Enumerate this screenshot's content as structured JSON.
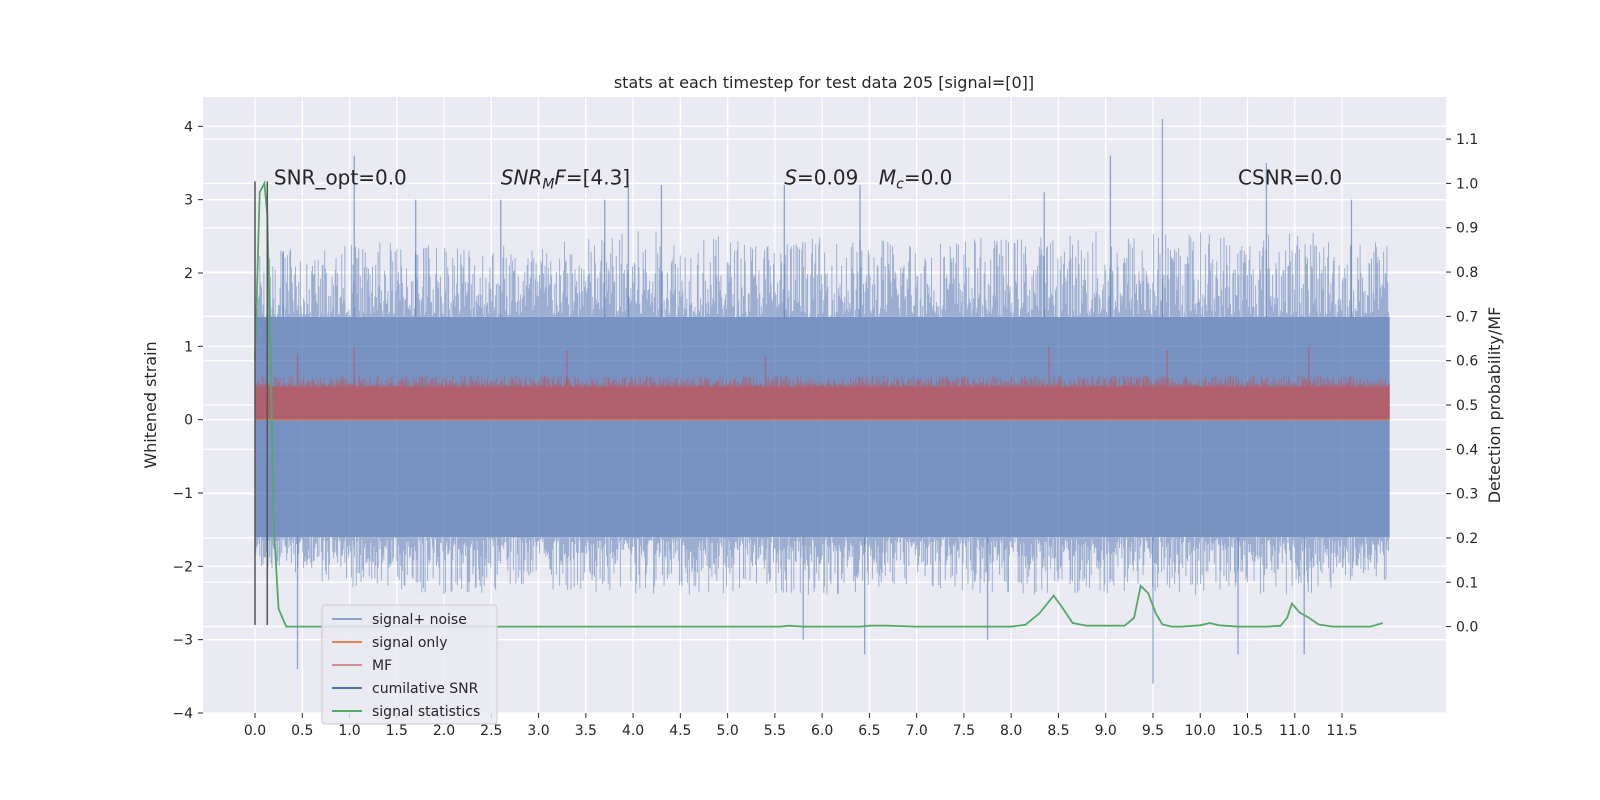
{
  "chart_data": {
    "type": "line",
    "title": "stats at each timestep for test data 205 [signal=[0]]",
    "xlabel": "",
    "ylabel": "Whitened strain",
    "ylabel_right": "Detection probability/MF",
    "xlim": [
      -0.55,
      12.6
    ],
    "ylim": [
      -4.0,
      4.4
    ],
    "ylim_right": [
      -0.195,
      1.195
    ],
    "x_ticks": [
      0.0,
      0.5,
      1.0,
      1.5,
      2.0,
      2.5,
      3.0,
      3.5,
      4.0,
      4.5,
      5.0,
      5.5,
      6.0,
      6.5,
      7.0,
      7.5,
      8.0,
      8.5,
      9.0,
      9.5,
      10.0,
      10.5,
      11.0,
      11.5
    ],
    "x_tick_labels": [
      "0.0",
      "0.5",
      "1.0",
      "1.5",
      "2.0",
      "2.5",
      "3.0",
      "3.5",
      "4.0",
      "4.5",
      "5.0",
      "5.5",
      "6.0",
      "6.5",
      "7.0",
      "7.5",
      "8.0",
      "8.5",
      "9.0",
      "9.5",
      "10.0",
      "10.5",
      "11.0",
      "11.5"
    ],
    "y_ticks": [
      -4,
      -3,
      -2,
      -1,
      0,
      1,
      2,
      3,
      4
    ],
    "y_tick_labels": [
      "−4",
      "−3",
      "−2",
      "−1",
      "0",
      "1",
      "2",
      "3",
      "4"
    ],
    "y_ticks_right": [
      0.0,
      0.1,
      0.2,
      0.3,
      0.4,
      0.5,
      0.6,
      0.7,
      0.8,
      0.9,
      1.0,
      1.1
    ],
    "y_tick_labels_right": [
      "0.0",
      "0.1",
      "0.2",
      "0.3",
      "0.4",
      "0.5",
      "0.6",
      "0.7",
      "0.8",
      "0.9",
      "1.0",
      "1.1"
    ],
    "grid": true,
    "legend_position": "lower-left",
    "annotations": [
      {
        "text": "SNR_opt=0.0",
        "x": 0.2,
        "y": 3.3
      },
      {
        "text": "SNR",
        "sub": "M",
        "tail": "F=[4.3]",
        "italic": true,
        "x": 2.6,
        "y": 3.3
      },
      {
        "text": "S",
        "tail": "=0.09",
        "italic": true,
        "x": 5.6,
        "y": 3.3
      },
      {
        "text": "M",
        "sub": "c",
        "tail": "=0.0",
        "italic": true,
        "x": 6.6,
        "y": 3.3
      },
      {
        "text": "CSNR=0.0",
        "x": 10.4,
        "y": 3.3
      }
    ],
    "series": [
      {
        "name": "signal+ noise",
        "color": "#4c72b0",
        "axis": "left",
        "kind": "noise-band",
        "x_range": [
          0.0,
          12.0
        ],
        "dense_band": [
          -1.6,
          1.4
        ],
        "envelope_upper": [
          [
            0.0,
            2.3
          ],
          [
            1.0,
            2.4
          ],
          [
            2.0,
            2.5
          ],
          [
            3.0,
            2.4
          ],
          [
            4.0,
            2.6
          ],
          [
            5.0,
            2.5
          ],
          [
            6.0,
            2.5
          ],
          [
            7.0,
            2.5
          ],
          [
            8.0,
            2.5
          ],
          [
            9.0,
            2.6
          ],
          [
            10.0,
            2.6
          ],
          [
            11.0,
            2.6
          ],
          [
            12.0,
            2.4
          ]
        ],
        "envelope_lower": [
          [
            0.0,
            -2.0
          ],
          [
            1.0,
            -2.3
          ],
          [
            2.0,
            -2.4
          ],
          [
            3.0,
            -2.3
          ],
          [
            4.0,
            -2.4
          ],
          [
            5.0,
            -2.4
          ],
          [
            6.0,
            -2.4
          ],
          [
            7.0,
            -2.3
          ],
          [
            8.0,
            -2.4
          ],
          [
            9.0,
            -2.4
          ],
          [
            10.0,
            -2.4
          ],
          [
            11.0,
            -2.4
          ],
          [
            12.0,
            -2.2
          ]
        ],
        "spikes": [
          [
            0.3,
            2.3
          ],
          [
            0.45,
            -3.4
          ],
          [
            1.05,
            3.6
          ],
          [
            1.7,
            3.0
          ],
          [
            2.6,
            3.0
          ],
          [
            3.7,
            3.0
          ],
          [
            3.95,
            3.2
          ],
          [
            4.3,
            3.2
          ],
          [
            5.6,
            3.2
          ],
          [
            5.8,
            -3.0
          ],
          [
            6.4,
            3.2
          ],
          [
            6.45,
            -3.2
          ],
          [
            7.75,
            -3.0
          ],
          [
            8.35,
            3.1
          ],
          [
            9.05,
            3.6
          ],
          [
            9.6,
            4.1
          ],
          [
            9.5,
            -3.6
          ],
          [
            10.4,
            -3.2
          ],
          [
            10.7,
            3.5
          ],
          [
            11.1,
            -3.2
          ],
          [
            11.6,
            3.0
          ]
        ]
      },
      {
        "name": "signal only",
        "color": "#dd8452",
        "axis": "left",
        "kind": "line",
        "x": [
          0.0,
          12.0
        ],
        "y": [
          0.0,
          0.0
        ]
      },
      {
        "name": "MF",
        "color": "#c44e52",
        "axis": "left",
        "kind": "noise-band",
        "x_range": [
          0.0,
          12.0
        ],
        "dense_band": [
          0.0,
          0.45
        ],
        "envelope_upper": [
          [
            0.0,
            0.6
          ],
          [
            3.0,
            0.6
          ],
          [
            6.0,
            0.6
          ],
          [
            9.0,
            0.6
          ],
          [
            12.0,
            0.6
          ]
        ],
        "envelope_lower": [
          [
            0.0,
            0.0
          ],
          [
            12.0,
            0.0
          ]
        ],
        "spikes": [
          [
            0.45,
            0.9
          ],
          [
            1.05,
            1.0
          ],
          [
            3.3,
            0.95
          ],
          [
            5.4,
            0.85
          ],
          [
            8.4,
            1.0
          ],
          [
            9.65,
            0.95
          ],
          [
            11.15,
            1.0
          ]
        ]
      },
      {
        "name": "cumilative SNR",
        "color": "#4c72b0",
        "axis": "left",
        "kind": "line",
        "x": [],
        "y": []
      },
      {
        "name": "signal statistics",
        "color": "#55a868",
        "axis": "right",
        "kind": "line",
        "x": [
          0.0,
          0.05,
          0.1,
          0.13,
          0.17,
          0.2,
          0.25,
          0.33,
          0.5,
          1.0,
          2.0,
          3.0,
          4.0,
          5.0,
          5.55,
          5.65,
          5.8,
          6.0,
          6.4,
          6.5,
          6.7,
          7.0,
          7.5,
          8.0,
          8.15,
          8.3,
          8.45,
          8.55,
          8.65,
          8.8,
          9.0,
          9.2,
          9.3,
          9.37,
          9.45,
          9.53,
          9.6,
          9.7,
          9.8,
          10.0,
          10.1,
          10.2,
          10.4,
          10.7,
          10.85,
          10.92,
          10.97,
          11.05,
          11.15,
          11.25,
          11.4,
          11.6,
          11.8,
          11.93
        ],
        "y": [
          0.6,
          0.98,
          1.0,
          0.93,
          0.55,
          0.22,
          0.04,
          0.0,
          0.0,
          0.0,
          0.0,
          0.0,
          0.0,
          0.0,
          0.0,
          0.002,
          0.0,
          0.0,
          0.0,
          0.002,
          0.002,
          0.0,
          0.0,
          0.0,
          0.004,
          0.03,
          0.07,
          0.04,
          0.008,
          0.002,
          0.002,
          0.002,
          0.02,
          0.092,
          0.075,
          0.03,
          0.005,
          0.0,
          0.0,
          0.003,
          0.008,
          0.003,
          0.0,
          0.0,
          0.002,
          0.02,
          0.052,
          0.032,
          0.02,
          0.005,
          0.0,
          0.0,
          0.0,
          0.008
        ]
      }
    ],
    "vertical_lines": [
      {
        "x": 0.0,
        "y0": -2.8,
        "y1": 3.25,
        "color": "#555555"
      },
      {
        "x": 0.13,
        "y0": -2.8,
        "y1": 3.25,
        "color": "#555555"
      }
    ]
  }
}
